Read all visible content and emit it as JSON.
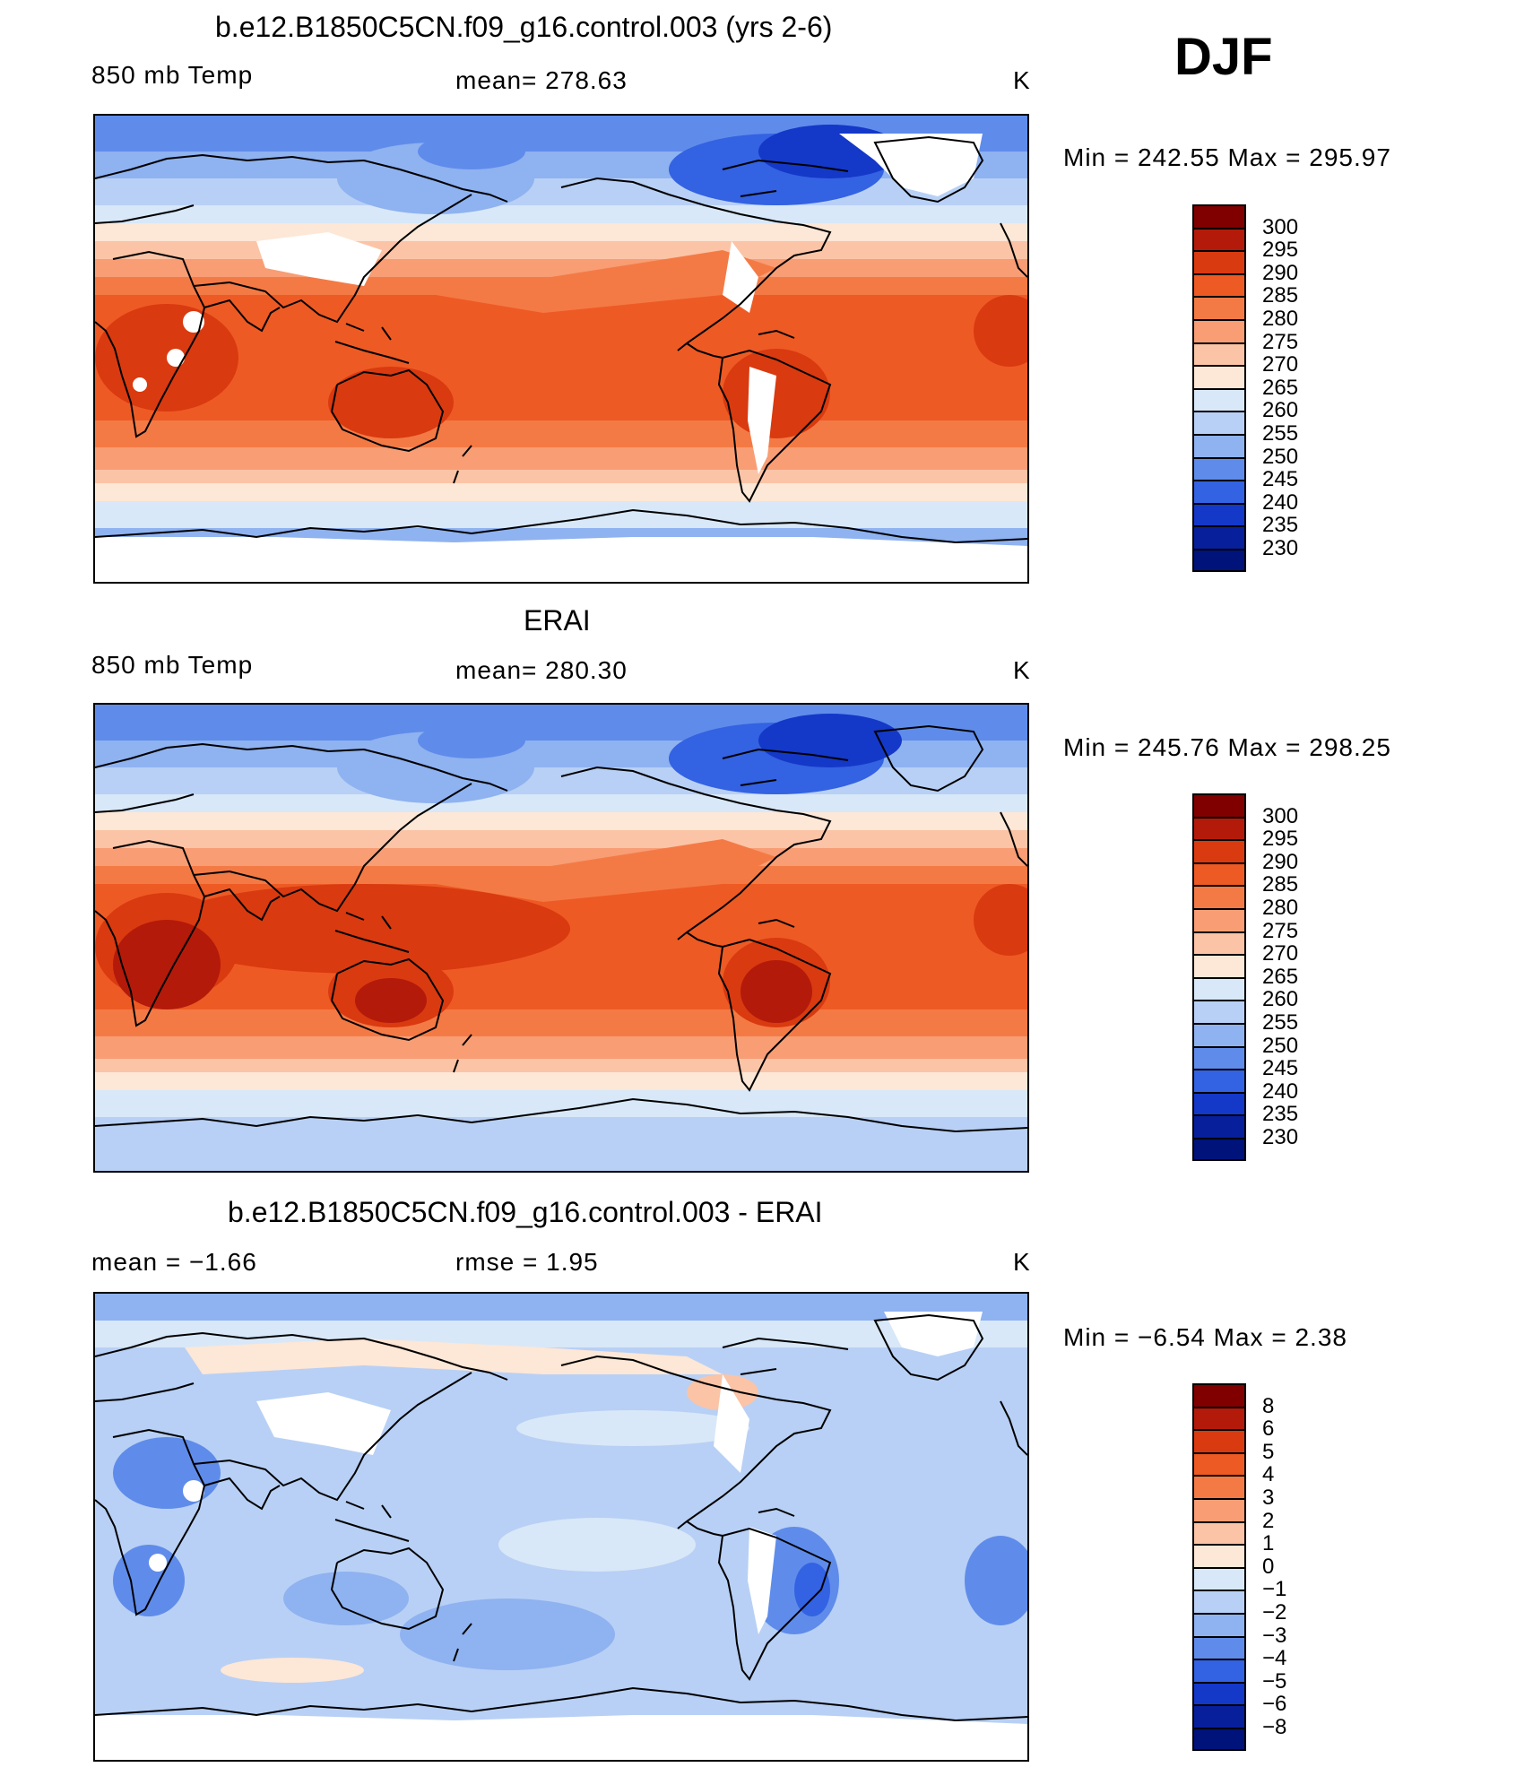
{
  "season": "DJF",
  "panels": [
    {
      "id": "model",
      "title": "b.e12.B1850C5CN.f09_g16.control.003 (yrs 2-6)",
      "left_label": "850 mb Temp",
      "center_label": "mean=  278.63",
      "units": "K",
      "minmax": "Min  =  242.55  Max  =  295.97",
      "colorbar_levels": [
        "300",
        "295",
        "290",
        "285",
        "280",
        "275",
        "270",
        "265",
        "260",
        "255",
        "250",
        "245",
        "240",
        "235",
        "230"
      ],
      "missing_land": true
    },
    {
      "id": "obs",
      "title": "ERAI",
      "left_label": "850 mb Temp",
      "center_label": "mean=  280.30",
      "units": "K",
      "minmax": "Min  =  245.76  Max  =  298.25",
      "colorbar_levels": [
        "300",
        "295",
        "290",
        "285",
        "280",
        "275",
        "270",
        "265",
        "260",
        "255",
        "250",
        "245",
        "240",
        "235",
        "230"
      ],
      "missing_land": false
    },
    {
      "id": "diff",
      "title": "b.e12.B1850C5CN.f09_g16.control.003 - ERAI",
      "left_label": "mean  =    −1.66",
      "center_label": "rmse  =      1.95",
      "units": "K",
      "minmax": "Min  =    −6.54  Max  =      2.38",
      "colorbar_levels": [
        "8",
        "6",
        "5",
        "4",
        "3",
        "2",
        "1",
        "0",
        "−1",
        "−2",
        "−3",
        "−4",
        "−5",
        "−6",
        "−8"
      ],
      "missing_land": true
    }
  ],
  "colors": {
    "scale": [
      "#800000",
      "#b31a0a",
      "#d93a10",
      "#ee5a24",
      "#f47a45",
      "#f89d74",
      "#fbc4a6",
      "#fde7d6",
      "#d8e8f8",
      "#b8d0f5",
      "#8fb2f0",
      "#5f8cea",
      "#3362e2",
      "#1438c8",
      "#081f9c",
      "#00137a"
    ],
    "coast": "#000000",
    "missing": "#ffffff"
  }
}
